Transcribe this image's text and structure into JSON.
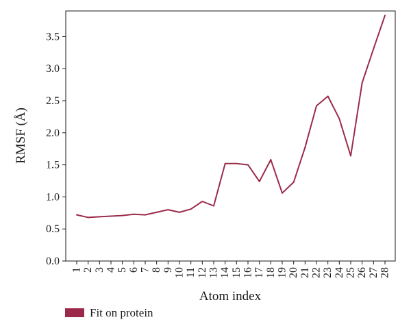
{
  "chart_data": {
    "type": "line",
    "xlabel": "Atom index",
    "ylabel": "RMSF (Å)",
    "ylim": [
      0.0,
      3.9
    ],
    "yticks": [
      "0.0",
      "0.5",
      "1.0",
      "1.5",
      "2.0",
      "2.5",
      "3.0",
      "3.5"
    ],
    "categories": [
      "1",
      "2",
      "3",
      "4",
      "5",
      "6",
      "7",
      "8",
      "9",
      "10",
      "11",
      "12",
      "13",
      "14",
      "15",
      "16",
      "17",
      "18",
      "19",
      "20",
      "21",
      "22",
      "23",
      "24",
      "25",
      "26",
      "27",
      "28"
    ],
    "grid": false,
    "legend_position": "bottom-left",
    "series": [
      {
        "name": "Fit on protein",
        "color": "#9b2a4a",
        "values": [
          0.72,
          0.68,
          0.69,
          0.7,
          0.71,
          0.73,
          0.72,
          0.76,
          0.8,
          0.76,
          0.81,
          0.93,
          0.86,
          1.52,
          1.52,
          1.5,
          1.24,
          1.58,
          1.06,
          1.23,
          1.77,
          2.42,
          2.57,
          2.22,
          1.64,
          2.78,
          3.31,
          3.83
        ]
      }
    ]
  }
}
